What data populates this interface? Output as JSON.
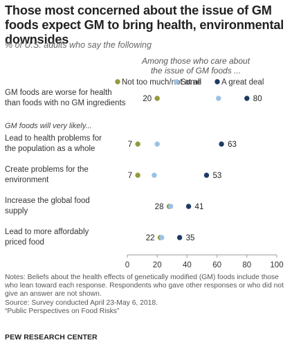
{
  "title": "Those most concerned about the issue of GM foods expect GM to bring health, environmental downsides",
  "subtitle": "% of U.S. adults who say the following",
  "legend_header_line1": "Among those who care about",
  "legend_header_line2": "the issue of GM foods ...",
  "section_label": "GM foods will very likely...",
  "notes": [
    "Notes: Beliefs about the health effects of genetically modified (GM) foods include those who lean toward each response. Respondents who gave other responses or who did not give an answer are not shown.",
    "Source: Survey conducted April 23-May 6, 2018.",
    "“Public Perspectives on Food Risks”"
  ],
  "brand": "PEW RESEARCH CENTER",
  "chart_data": {
    "type": "scatter",
    "categories": [
      [
        "GM foods are worse for health",
        "than foods with no GM ingredients"
      ],
      [
        "Lead to health problems for",
        "the population as a whole"
      ],
      [
        "Create problems for the",
        "environment"
      ],
      [
        "Increase the global food",
        "supply"
      ],
      [
        "Lead to more affordably",
        "priced food"
      ]
    ],
    "series": [
      {
        "name": "Not too much/not at all",
        "color": "#949a3c",
        "values": [
          20,
          7,
          7,
          28,
          22
        ],
        "labeled": true
      },
      {
        "name": "Some",
        "color": "#9bc1e5",
        "values": [
          61,
          20,
          18,
          29,
          23
        ],
        "labeled": false
      },
      {
        "name": "A great deal",
        "color": "#1f3a66",
        "values": [
          80,
          63,
          53,
          41,
          35
        ],
        "labeled": true
      }
    ],
    "xlim": [
      0,
      100
    ],
    "xticks": [
      0,
      20,
      40,
      60,
      80,
      100
    ],
    "grid": false,
    "legend_position": "top"
  }
}
